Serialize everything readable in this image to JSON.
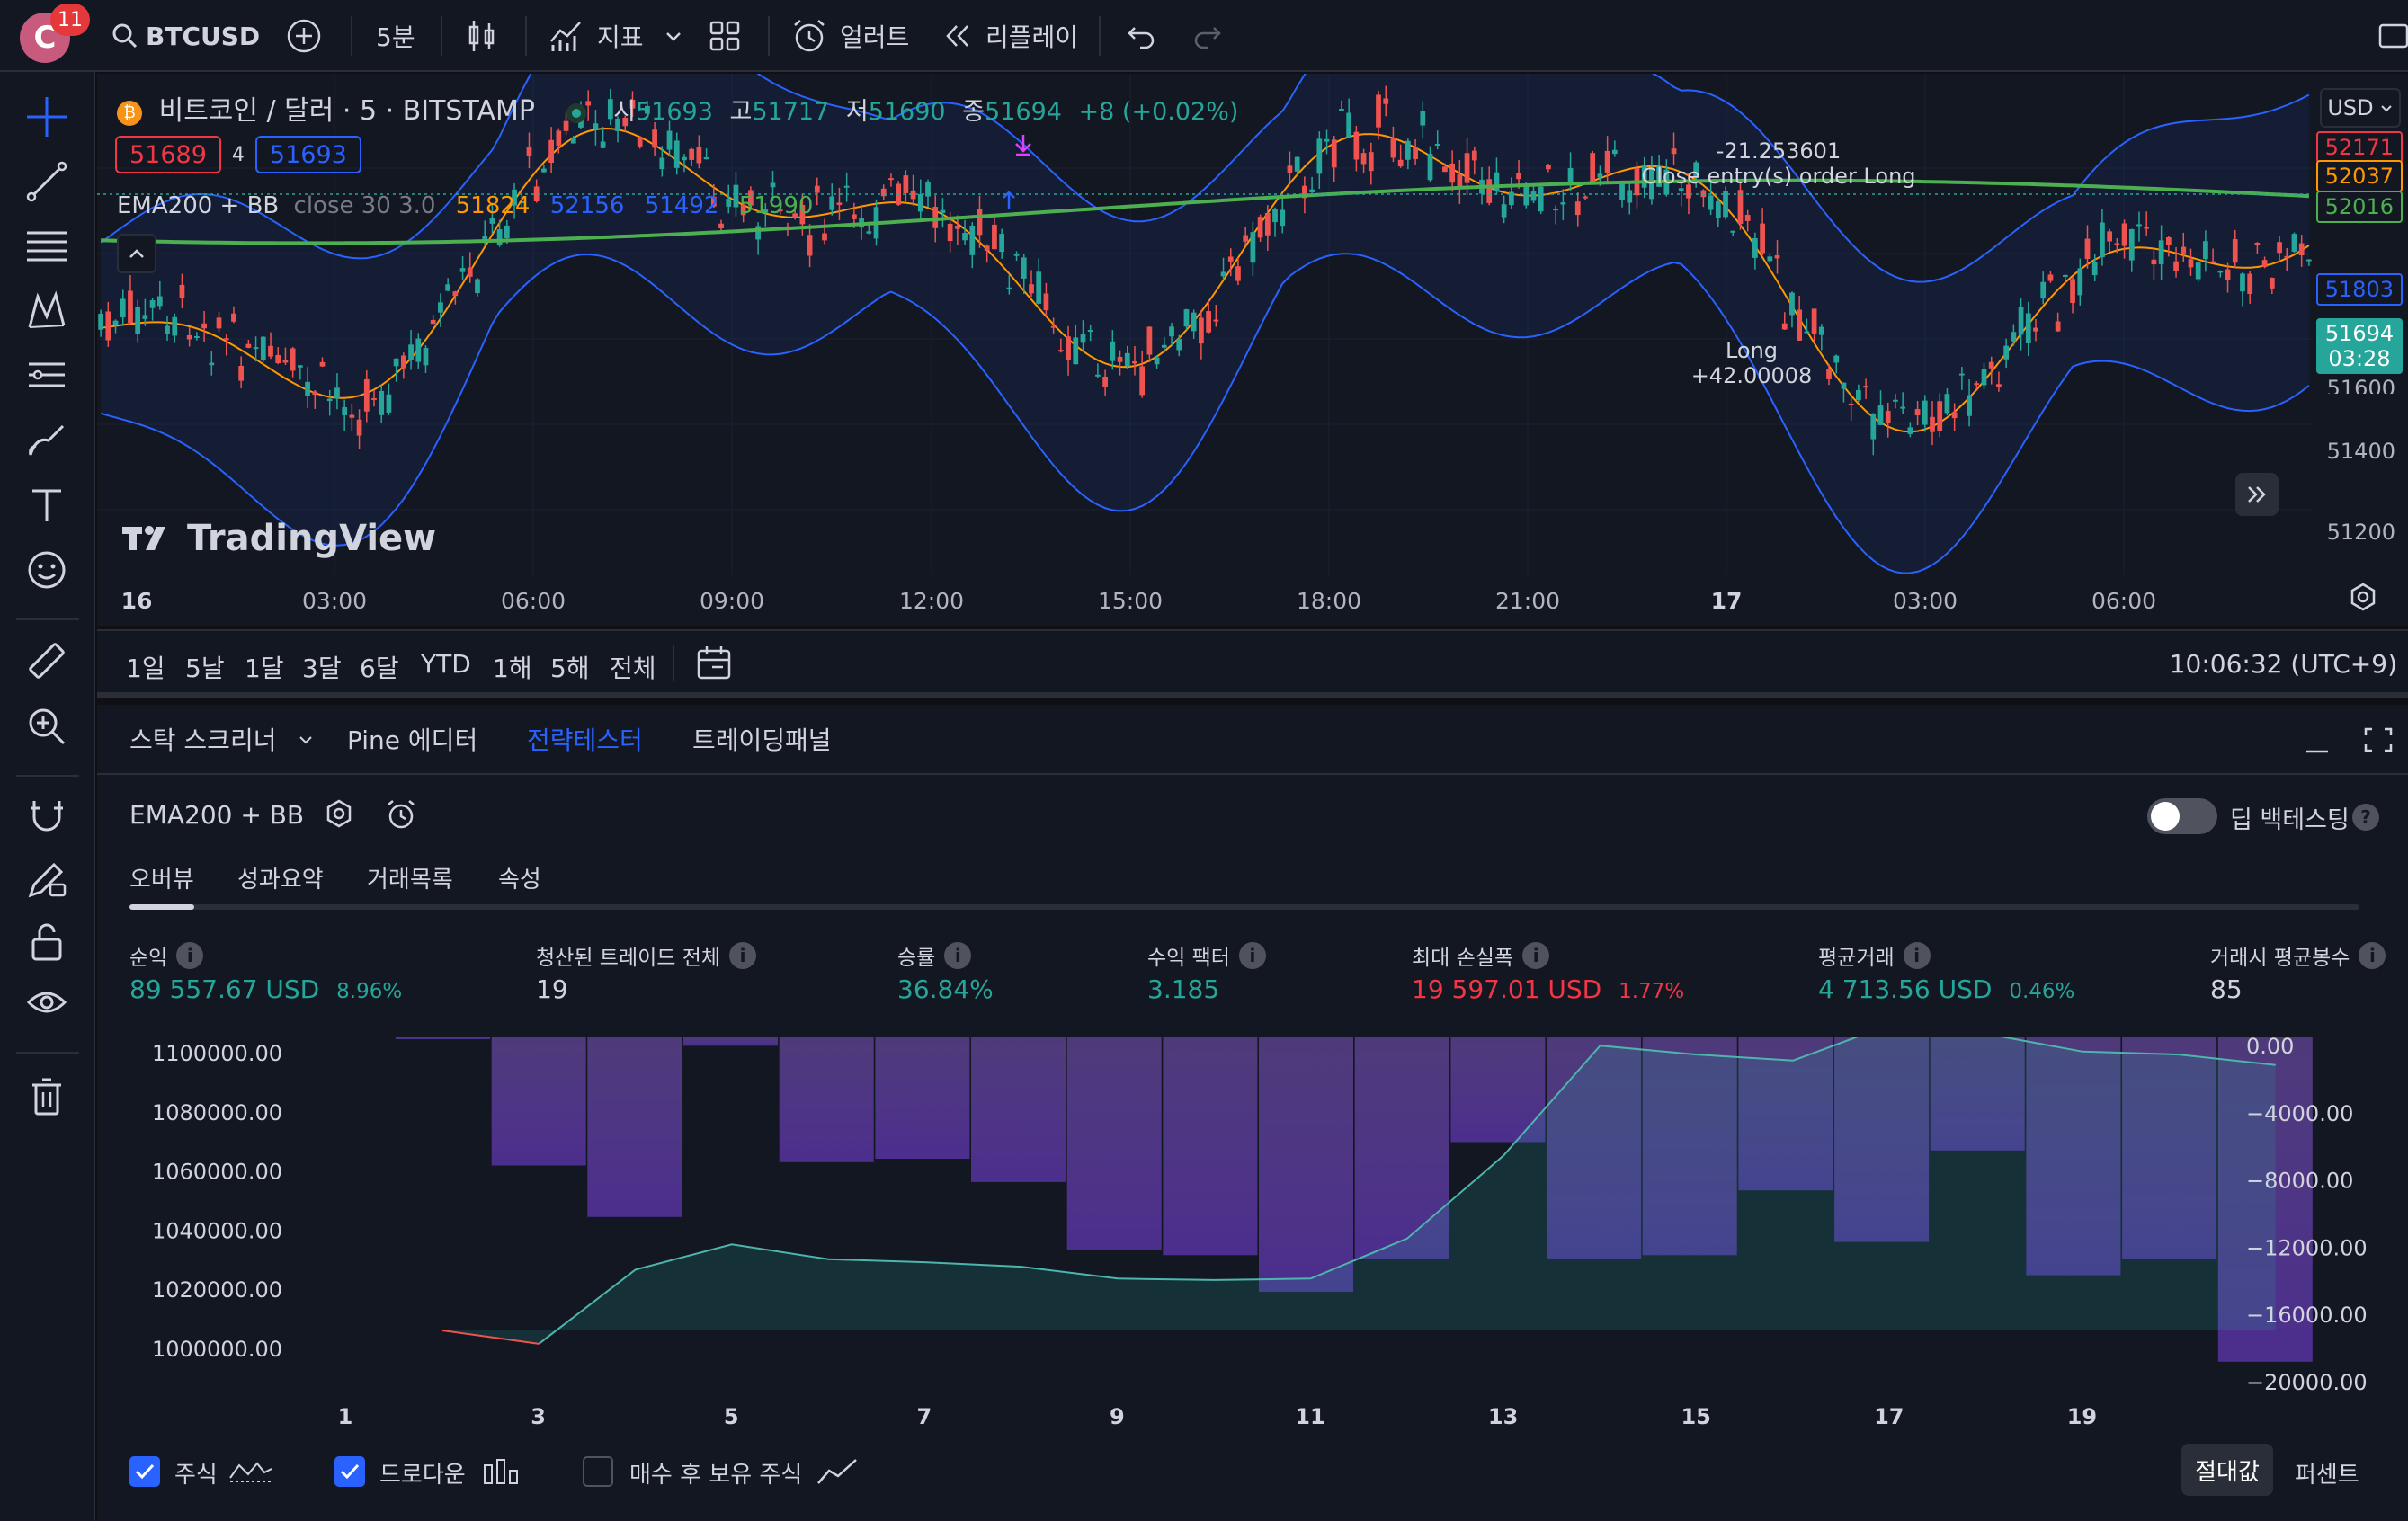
{
  "topbar": {
    "avatar_letter": "C",
    "notifications": "11",
    "symbol": "BTCUSD",
    "interval": "5분",
    "indicators": "지표",
    "alerts": "얼러트",
    "replay": "리플레이"
  },
  "chart": {
    "title": "비트코인 / 달러 · 5 · BITSTAMP",
    "ohlc": {
      "o_label": "시",
      "o": "51693",
      "h_label": "고",
      "h": "51717",
      "l_label": "저",
      "l": "51690",
      "c_label": "종",
      "c": "51694",
      "change": "+8 (+0.02%)"
    },
    "bid": "51689",
    "spread": "4",
    "ask": "51693",
    "indicator_legend": {
      "name": "EMA200 + BB",
      "params": "close 30 3.0",
      "v1": "51824",
      "v2": "52156",
      "v3": "51492",
      "v4": "51990"
    },
    "currency": "USD",
    "price_labels": {
      "p1": "52171",
      "p2": "52037",
      "p3": "52016",
      "p4": "51803",
      "last": "51694",
      "countdown": "03:28",
      "p5": "51600",
      "p6": "51400",
      "p7": "51200"
    },
    "annotations": {
      "close_value": "-21.253601",
      "close_text": "Close entry(s) order Long",
      "long_text": "Long",
      "long_value": "+42.00008"
    },
    "watermark": "TradingView",
    "time_labels": [
      "16",
      "03:00",
      "06:00",
      "09:00",
      "12:00",
      "15:00",
      "18:00",
      "21:00",
      "17",
      "03:00",
      "06:00"
    ],
    "colors": {
      "up": "#26a69a",
      "down": "#ef5350",
      "ema": "#4caf50",
      "bb_basis": "#ff9800",
      "bb_band": "#2962ff"
    }
  },
  "rangebar": {
    "ranges": [
      "1일",
      "5날",
      "1달",
      "3달",
      "6달",
      "YTD",
      "1해",
      "5해",
      "전체"
    ],
    "clock": "10:06:32 (UTC+9)"
  },
  "panel": {
    "tabs": [
      "스탁 스크리너",
      "Pine 에디터",
      "전략테스터",
      "트레이딩패널"
    ],
    "active_tab": "전략테스터",
    "strategy_name": "EMA200 + BB",
    "deep_backtest": "딥 백테스팅",
    "subtabs": [
      "오버뷰",
      "성과요약",
      "거래목록",
      "속성"
    ],
    "stats": {
      "net_label": "순익",
      "net_value": "89 557.67 USD",
      "net_pct": "8.96%",
      "trades_label": "청산된 트레이드 전체",
      "trades_value": "19",
      "winrate_label": "승률",
      "winrate_value": "36.84%",
      "pf_label": "수익 팩터",
      "pf_value": "3.185",
      "dd_label": "최대 손실폭",
      "dd_value": "19 597.01 USD",
      "dd_pct": "1.77%",
      "avg_label": "평균거래",
      "avg_value": "4 713.56 USD",
      "avg_pct": "0.46%",
      "bars_label": "거래시 평균봉수",
      "bars_value": "85"
    },
    "legend": {
      "equity": "주식",
      "drawdown": "드로다운",
      "buyhold": "매수 후 보유 주식"
    },
    "mode_abs": "절대값",
    "mode_pct": "퍼센트"
  },
  "chart_data": {
    "type": "area",
    "x": [
      1,
      2,
      3,
      4,
      5,
      6,
      7,
      8,
      9,
      10,
      11,
      12,
      13,
      14,
      15,
      16,
      17,
      18,
      19,
      20
    ],
    "x_ticks": [
      "1",
      "3",
      "5",
      "7",
      "9",
      "11",
      "13",
      "15",
      "17",
      "19"
    ],
    "left_ticks": [
      "1100000.00",
      "1080000.00",
      "1060000.00",
      "1040000.00",
      "1020000.00",
      "1000000.00"
    ],
    "right_ticks": [
      "0.00",
      "−4000.00",
      "−8000.00",
      "−12000.00",
      "−16000.00",
      "−20000.00"
    ],
    "ylim_left": [
      990000,
      1105000
    ],
    "ylim_right": [
      -20000,
      0
    ],
    "series": [
      {
        "values": [
          1000000,
          995500,
          1020500,
          1029000,
          1024000,
          1023000,
          1021500,
          1017500,
          1017000,
          1017500,
          1031000,
          1059000,
          1096000,
          1093000,
          1091000,
          1103000,
          1100000,
          1094000,
          1093000,
          1089500
        ]
      },
      {
        "values": [
          0,
          -7700,
          -10800,
          -500,
          -7500,
          -7300,
          -8700,
          -12800,
          -13100,
          -15300,
          -13300,
          -6300,
          -13300,
          -13100,
          -9200,
          -12300,
          -6800,
          -14300,
          -13300,
          -19500
        ]
      }
    ]
  }
}
